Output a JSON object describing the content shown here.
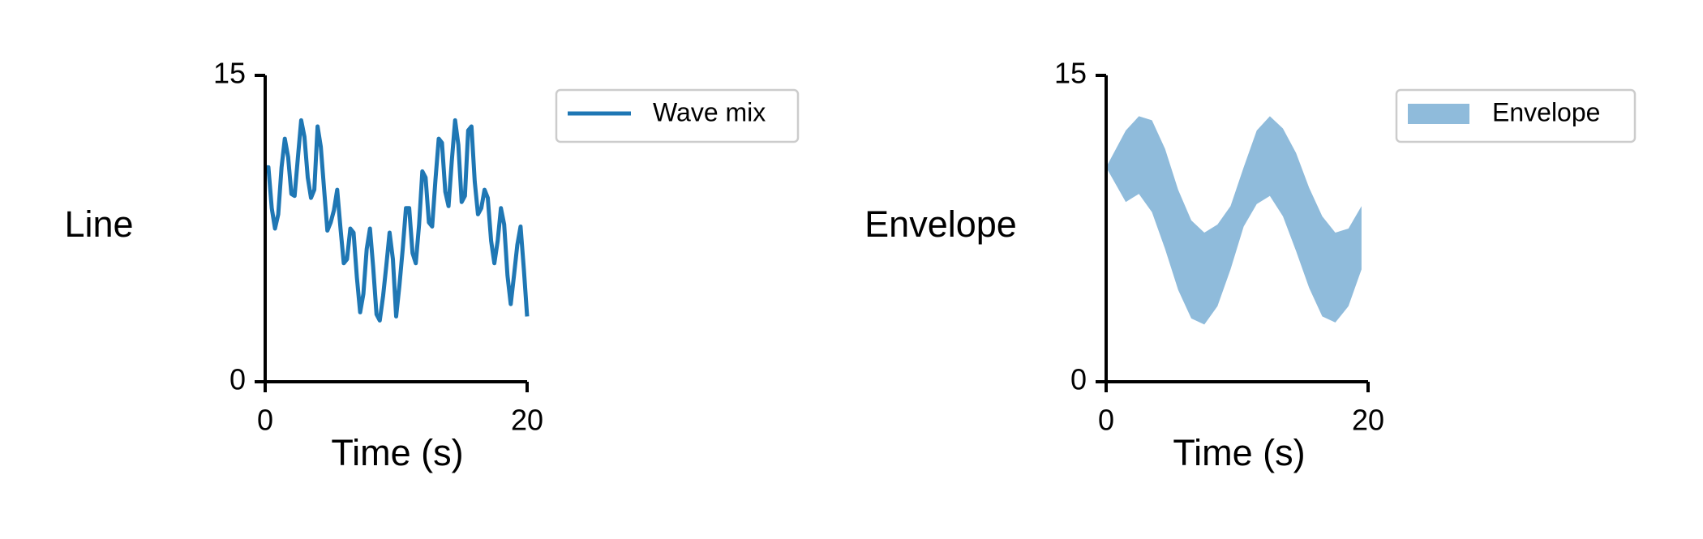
{
  "chart_data": [
    {
      "type": "line",
      "ylabel": "Line",
      "xlabel": "Time (s)",
      "xlim": [
        0,
        20
      ],
      "ylim": [
        0,
        15
      ],
      "xticks": [
        "0",
        "20"
      ],
      "yticks": [
        "0",
        "15"
      ],
      "grid": false,
      "legend_position": "top-right, outside plot",
      "color": "#1f77b4",
      "series": [
        {
          "name": "Wave mix",
          "x": [
            0.0,
            0.25,
            0.5,
            0.75,
            1.0,
            1.25,
            1.5,
            1.75,
            2.0,
            2.25,
            2.5,
            2.75,
            3.0,
            3.25,
            3.5,
            3.75,
            4.0,
            4.25,
            4.5,
            4.75,
            5.0,
            5.25,
            5.5,
            5.75,
            6.0,
            6.25,
            6.5,
            6.75,
            7.0,
            7.25,
            7.5,
            7.75,
            8.0,
            8.25,
            8.5,
            8.75,
            9.0,
            9.25,
            9.5,
            9.75,
            10.0,
            10.25,
            10.5,
            10.75,
            11.0,
            11.25,
            11.5,
            11.75,
            12.0,
            12.25,
            12.5,
            12.75,
            13.0,
            13.25,
            13.5,
            13.75,
            14.0,
            14.25,
            14.5,
            14.75,
            15.0,
            15.25,
            15.5,
            15.75,
            16.0,
            16.25,
            16.5,
            16.75,
            17.0,
            17.25,
            17.5,
            17.75,
            18.0,
            18.25,
            18.5,
            18.75,
            19.0,
            19.25,
            19.5,
            19.75,
            20.0
          ],
          "y": [
            10.5,
            10.5,
            8.5,
            7.5,
            8.2,
            10.5,
            11.9,
            11.0,
            9.2,
            9.1,
            11.0,
            12.8,
            12.0,
            10.0,
            9.0,
            9.4,
            12.5,
            11.5,
            9.4,
            7.4,
            7.8,
            8.4,
            9.4,
            7.5,
            5.8,
            6.0,
            7.5,
            7.3,
            5.1,
            3.4,
            4.3,
            6.5,
            7.5,
            5.6,
            3.3,
            3.0,
            4.2,
            5.7,
            7.3,
            6.0,
            3.2,
            4.7,
            6.5,
            8.5,
            8.5,
            6.3,
            5.8,
            7.7,
            10.3,
            10.0,
            7.8,
            7.6,
            9.9,
            11.9,
            11.7,
            9.3,
            8.6,
            10.8,
            12.8,
            11.6,
            8.8,
            9.1,
            12.3,
            12.5,
            9.8,
            8.2,
            8.5,
            9.4,
            9.0,
            6.9,
            5.8,
            6.9,
            8.5,
            7.7,
            5.2,
            3.8,
            5.2,
            6.7,
            7.6,
            5.5,
            3.2
          ]
        }
      ]
    },
    {
      "type": "area",
      "ylabel": "Envelope",
      "xlabel": "Time (s)",
      "xlim": [
        0,
        20
      ],
      "ylim": [
        0,
        15
      ],
      "xticks": [
        "0",
        "20"
      ],
      "yticks": [
        "0",
        "15"
      ],
      "grid": false,
      "legend_position": "top-right, outside plot",
      "color": "#8fbbdb",
      "series": [
        {
          "name": "Envelope",
          "x": [
            0,
            1.5,
            2.5,
            3.5,
            4.5,
            5.5,
            6.5,
            7.5,
            8.5,
            9.5,
            10.5,
            11.5,
            12.5,
            13.5,
            14.5,
            15.5,
            16.5,
            17.5,
            18.5,
            19.5
          ],
          "y_low": [
            10.5,
            8.8,
            9.2,
            8.3,
            6.5,
            4.5,
            3.1,
            2.8,
            3.7,
            5.5,
            7.6,
            8.7,
            9.1,
            8.1,
            6.4,
            4.6,
            3.2,
            2.9,
            3.7,
            5.5
          ],
          "y_high": [
            10.5,
            12.3,
            13.0,
            12.8,
            11.4,
            9.4,
            7.9,
            7.3,
            7.7,
            8.6,
            10.5,
            12.3,
            13.0,
            12.4,
            11.2,
            9.5,
            8.1,
            7.3,
            7.5,
            8.6
          ]
        }
      ]
    }
  ]
}
